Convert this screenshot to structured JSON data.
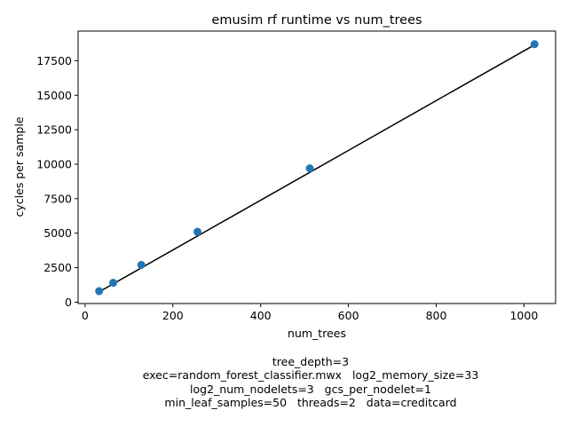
{
  "chart_data": {
    "type": "scatter",
    "title": "emusim rf runtime vs num_trees",
    "xlabel": "num_trees",
    "ylabel": "cycles per sample",
    "xlim": [
      -16,
      1072
    ],
    "ylim": [
      -100,
      19650
    ],
    "xticks": [
      0,
      200,
      400,
      600,
      800,
      1000
    ],
    "yticks": [
      0,
      2500,
      5000,
      7500,
      10000,
      12500,
      15000,
      17500
    ],
    "grid": false,
    "series": [
      {
        "kind": "points",
        "color": "#1f77b4",
        "x": [
          32,
          64,
          128,
          256,
          512,
          1024
        ],
        "y": [
          800,
          1400,
          2700,
          5100,
          9700,
          18700
        ]
      },
      {
        "kind": "fit-line",
        "color": "#000000",
        "x": [
          32,
          1024
        ],
        "y": [
          750,
          18650
        ]
      }
    ],
    "caption_lines": [
      "tree_depth=3",
      "exec=random_forest_classifier.mwx   log2_memory_size=33",
      "log2_num_nodelets=3   gcs_per_nodelet=1",
      "min_leaf_samples=50   threads=2   data=creditcard"
    ]
  }
}
